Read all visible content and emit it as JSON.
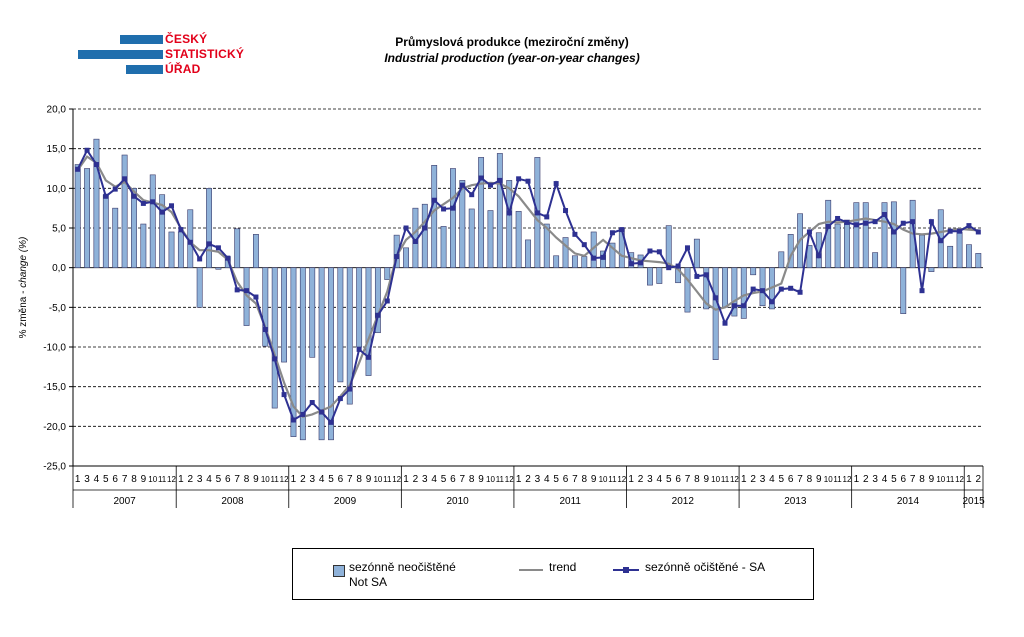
{
  "header": {
    "logo_line1": "ČESKÝ",
    "logo_line2": "STATISTICKÝ",
    "logo_line3": "ÚŘAD",
    "title_cz": "Průmyslová produkce (meziroční změny)",
    "title_en": "Industrial production (year-on-year changes)"
  },
  "colors": {
    "bar_fill": "#8fb2d9",
    "bar_stroke": "#3a3a6a",
    "trend": "#8a8a8a",
    "sa": "#2e3192",
    "logo_blue": "#1f6ead",
    "logo_red": "#e2001a"
  },
  "legend": {
    "not_sa_cz": "sezónně neočištěné",
    "not_sa_en": "Not SA",
    "trend": "trend",
    "sa": "sezónně očištěné - SA"
  },
  "chart_data": {
    "type": "bar",
    "ylabel_prefix": "% změna - ",
    "ylabel_italic": "change (%)",
    "ylim": [
      -25,
      20
    ],
    "yticks": [
      "20,0",
      "15,0",
      "10,0",
      "5,0",
      "0,0",
      "-5,0",
      "-10,0",
      "-15,0",
      "-20,0",
      "-25,0"
    ],
    "grid": true,
    "legend_position": "bottom",
    "years": [
      "2007",
      "2008",
      "2009",
      "2010",
      "2011",
      "2012",
      "2013",
      "2014",
      "2015"
    ],
    "month_labels": [
      "1",
      "3",
      "4",
      "5",
      "6",
      "7",
      "8",
      "9",
      "10",
      "11",
      "12",
      "1",
      "2",
      "3",
      "4",
      "5",
      "6",
      "7",
      "8",
      "9",
      "10",
      "11",
      "12",
      "1",
      "2",
      "3",
      "4",
      "5",
      "6",
      "7",
      "8",
      "9",
      "10",
      "11",
      "12",
      "1",
      "2",
      "3",
      "4",
      "5",
      "6",
      "7",
      "8",
      "9",
      "10",
      "11",
      "12",
      "1",
      "2",
      "3",
      "4",
      "5",
      "6",
      "7",
      "8",
      "9",
      "10",
      "11",
      "12",
      "1",
      "2",
      "3",
      "4",
      "5",
      "6",
      "7",
      "8",
      "9",
      "10",
      "11",
      "12",
      "1",
      "2",
      "3",
      "4",
      "5",
      "6",
      "7",
      "8",
      "9",
      "10",
      "11",
      "12",
      "1",
      "2",
      "3",
      "4",
      "5",
      "6",
      "7",
      "8",
      "9",
      "10",
      "11",
      "12",
      "1",
      "2"
    ],
    "year_group_sizes": [
      11,
      12,
      12,
      12,
      12,
      12,
      12,
      12,
      2
    ],
    "series": [
      {
        "name": "sezónně neočištěné Not SA",
        "type": "bar",
        "values": [
          13.0,
          12.5,
          16.2,
          9.2,
          7.5,
          14.2,
          10.0,
          5.5,
          11.7,
          9.2,
          4.5,
          4.5,
          7.3,
          -5.0,
          10.0,
          -0.2,
          1.4,
          4.9,
          -7.3,
          4.2,
          -9.9,
          -17.7,
          -11.9,
          -21.3,
          -21.7,
          -11.3,
          -21.7,
          -21.7,
          -14.4,
          -17.2,
          -10.0,
          -13.6,
          -8.2,
          -1.5,
          4.1,
          2.5,
          7.5,
          8.0,
          12.9,
          5.2,
          12.5,
          11.0,
          7.4,
          13.9,
          7.2,
          14.4,
          11.0,
          7.1,
          3.5,
          13.9,
          5.5,
          1.5,
          3.8,
          1.5,
          1.4,
          4.5,
          2.1,
          3.1,
          4.9,
          1.9,
          1.6,
          -2.2,
          -2.0,
          5.3,
          -1.9,
          -5.6,
          3.6,
          -5.2,
          -11.6,
          -5.0,
          -6.1,
          -6.4,
          -0.9,
          -4.8,
          -5.2,
          2.0,
          4.2,
          6.8,
          2.8,
          4.4,
          8.5,
          5.5,
          6.0,
          8.2,
          8.2,
          1.9,
          8.2,
          8.3,
          -5.8,
          8.5,
          4.1,
          -0.5,
          7.3,
          2.7,
          4.5,
          2.9,
          1.8
        ]
      },
      {
        "name": "trend",
        "type": "line",
        "values": [
          12.3,
          14.0,
          13.2,
          11.0,
          10.2,
          10.8,
          9.6,
          8.5,
          8.2,
          7.9,
          7.0,
          5.0,
          3.2,
          2.2,
          2.2,
          2.0,
          1.0,
          -1.8,
          -3.5,
          -4.5,
          -7.5,
          -11.0,
          -14.5,
          -17.5,
          -18.8,
          -18.5,
          -18.0,
          -17.5,
          -16.2,
          -14.8,
          -12.0,
          -9.0,
          -6.0,
          -3.0,
          1.5,
          3.5,
          4.5,
          5.8,
          7.2,
          8.0,
          8.8,
          10.0,
          10.4,
          10.6,
          10.7,
          10.6,
          10.0,
          9.0,
          7.5,
          6.0,
          5.0,
          3.8,
          2.8,
          1.8,
          1.5,
          2.5,
          3.5,
          2.5,
          1.5,
          1.2,
          0.9,
          0.8,
          0.7,
          0.5,
          -0.2,
          -1.5,
          -3.0,
          -4.5,
          -5.3,
          -5.0,
          -4.2,
          -3.5,
          -3.2,
          -3.0,
          -2.5,
          -2.0,
          1.5,
          3.5,
          4.5,
          5.5,
          5.8,
          5.7,
          5.8,
          6.0,
          6.2,
          6.0,
          5.8,
          5.5,
          4.8,
          4.3,
          4.2,
          4.3,
          4.5,
          4.7,
          4.9,
          4.8,
          4.7
        ]
      },
      {
        "name": "sezónně očištěné - SA",
        "type": "line",
        "values": [
          12.4,
          14.8,
          13.0,
          9.0,
          9.9,
          11.2,
          9.0,
          8.1,
          8.3,
          7.0,
          7.8,
          4.8,
          3.2,
          1.1,
          3.0,
          2.5,
          1.2,
          -2.8,
          -2.9,
          -3.7,
          -7.8,
          -11.5,
          -16.0,
          -19.2,
          -18.5,
          -17.0,
          -18.2,
          -19.5,
          -16.5,
          -15.3,
          -10.3,
          -11.3,
          -6.0,
          -4.2,
          1.4,
          5.0,
          3.3,
          5.0,
          8.5,
          7.4,
          7.5,
          10.4,
          9.2,
          11.3,
          10.4,
          11.0,
          6.9,
          11.2,
          10.9,
          6.9,
          6.4,
          10.6,
          7.2,
          4.2,
          2.9,
          1.2,
          1.3,
          4.4,
          4.8,
          0.5,
          0.6,
          2.1,
          2.0,
          0.0,
          0.2,
          2.5,
          -1.1,
          -0.9,
          -3.8,
          -7.0,
          -4.8,
          -4.8,
          -2.7,
          -2.9,
          -4.3,
          -2.7,
          -2.6,
          -3.1,
          4.5,
          1.5,
          5.2,
          6.2,
          5.7,
          5.4,
          5.6,
          5.8,
          6.7,
          4.5,
          5.6,
          5.8,
          -2.9,
          5.8,
          3.4,
          4.6,
          4.6,
          5.3,
          4.5
        ]
      }
    ]
  }
}
